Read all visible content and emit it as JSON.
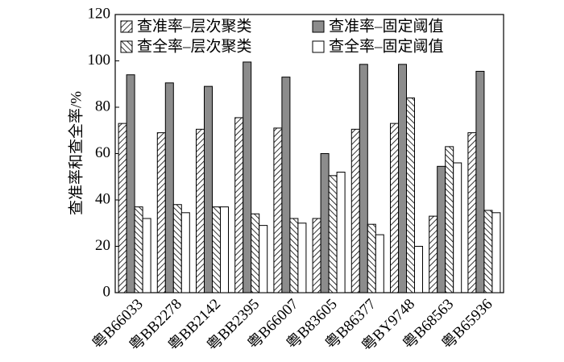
{
  "chart_data": {
    "type": "bar",
    "y_label": "查准率和查全率/%",
    "categories": [
      "粤B66033",
      "粤BB2278",
      "粤BB2142",
      "粤BB2395",
      "粤B66007",
      "粤B83605",
      "粤B86377",
      "粤BY9748",
      "粤B68563",
      "粤B65936"
    ],
    "series": [
      {
        "name": "查准率–层次聚类",
        "color": "#ffffff",
        "pattern": "hatch-right",
        "values": [
          73,
          69,
          70.5,
          75.5,
          71,
          32,
          70.5,
          73,
          33,
          69
        ]
      },
      {
        "name": "查准率–固定阈值",
        "color": "#8c8c8c",
        "pattern": null,
        "values": [
          94,
          90.5,
          89,
          99.5,
          93,
          60,
          98.5,
          98.5,
          54.5,
          95.5
        ]
      },
      {
        "name": "查全率–层次聚类",
        "color": "#ffffff",
        "pattern": "hatch-left",
        "values": [
          37,
          38,
          37,
          34,
          32,
          50.5,
          29.5,
          84,
          63,
          35.5
        ]
      },
      {
        "name": "查全率–固定阈值",
        "color": "#ffffff",
        "pattern": null,
        "values": [
          32,
          34.5,
          37,
          29,
          30,
          52,
          25,
          20,
          56,
          34.5
        ]
      }
    ],
    "ylim": [
      0,
      120
    ],
    "yticks": [
      0,
      20,
      40,
      60,
      80,
      100,
      120
    ],
    "grid": false
  }
}
